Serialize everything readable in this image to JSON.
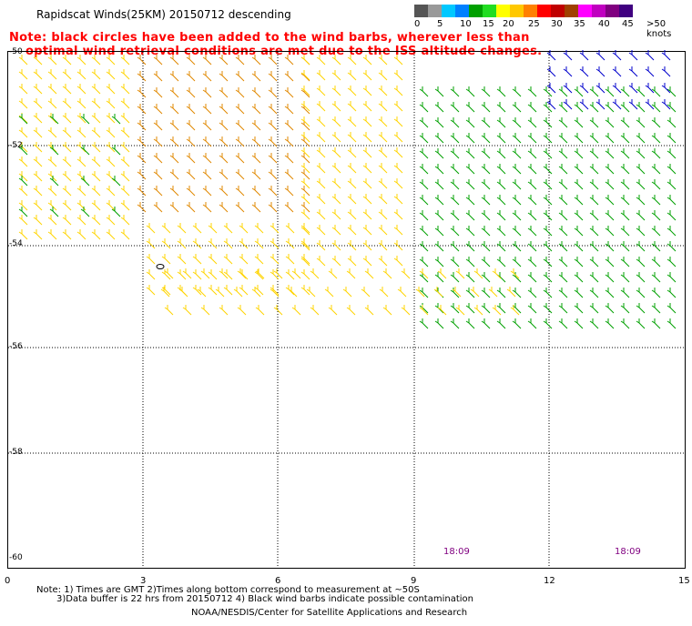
{
  "title": "Rapidscat Winds(25KM) 20150712 descending",
  "note": {
    "line1": "Note: black circles have been added to the wind barbs, wherever less than",
    "line2": "optimal wind retrieval conditions are met due to the ISS altitude changes."
  },
  "colorbar": {
    "labels": [
      "0",
      "5",
      "10",
      "15",
      "20",
      "25",
      "30",
      "35",
      "40",
      "45",
      ">50 knots"
    ],
    "colors": [
      "#555555",
      "#999999",
      "#00c8ff",
      "#0080ff",
      "#00a000",
      "#22dd22",
      "#ffff00",
      "#ffc800",
      "#ff8000",
      "#ff0000",
      "#c00000",
      "#a04000",
      "#ff00ff",
      "#c000c0",
      "#800080",
      "#400080"
    ]
  },
  "map": {
    "y_ticks": [
      "-50",
      "-52",
      "-54",
      "-56",
      "-58",
      "-60"
    ],
    "x_ticks": [
      "0",
      "3",
      "6",
      "9",
      "12",
      "15"
    ],
    "times": [
      "18:09",
      "18:09"
    ],
    "colors": {
      "grid": "#000000",
      "yellow": "#ffd400",
      "orange": "#e08800",
      "green": "#00a000",
      "blue": "#0000cc",
      "swath": "#ffff99"
    }
  },
  "footer": {
    "line1": "Note: 1) Times are GMT 2)Times along bottom correspond to measurement at ~50S",
    "line2": "3)Data buffer is 22 hrs from 20150712 4) Black wind barbs indicate possible contamination",
    "line3": "NOAA/NESDIS/Center for Satellite Applications and Research"
  }
}
